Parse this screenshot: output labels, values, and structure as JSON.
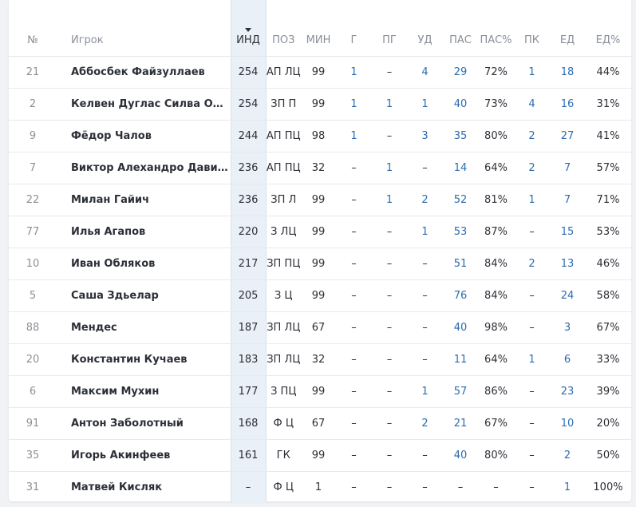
{
  "table": {
    "headers": {
      "num": "№",
      "player": "Игрок",
      "ind": "ИНД",
      "pos": "ПОЗ",
      "min": "МИН",
      "g": "Г",
      "pg": "ПГ",
      "ud": "УД",
      "pas": "ПАС",
      "pas_pct": "ПАС%",
      "pk": "ПК",
      "ed": "ЕД",
      "ed_pct": "ЕД%"
    },
    "sort_column": "ИНД",
    "rows": [
      {
        "num": "21",
        "name": "Аббосбек Файзуллаев",
        "ind": "254",
        "pos": "АП ЛЦ",
        "min": "99",
        "g": "1",
        "pg": "–",
        "ud": "4",
        "pas": "29",
        "pas_pct": "72%",
        "pk": "1",
        "ed": "18",
        "ed_pct": "44%"
      },
      {
        "num": "2",
        "name": "Келвен Дуглас Силва Оливе…",
        "ind": "254",
        "pos": "ЗП П",
        "min": "99",
        "g": "1",
        "pg": "1",
        "ud": "1",
        "pas": "40",
        "pas_pct": "73%",
        "pk": "4",
        "ed": "16",
        "ed_pct": "31%"
      },
      {
        "num": "9",
        "name": "Фёдор Чалов",
        "ind": "244",
        "pos": "АП ПЦ",
        "min": "98",
        "g": "1",
        "pg": "–",
        "ud": "3",
        "pas": "35",
        "pas_pct": "80%",
        "pk": "2",
        "ed": "27",
        "ed_pct": "41%"
      },
      {
        "num": "7",
        "name": "Виктор Алехандро Давила С…",
        "ind": "236",
        "pos": "АП ПЦ",
        "min": "32",
        "g": "–",
        "pg": "1",
        "ud": "–",
        "pas": "14",
        "pas_pct": "64%",
        "pk": "2",
        "ed": "7",
        "ed_pct": "57%"
      },
      {
        "num": "22",
        "name": "Милан Гайич",
        "ind": "236",
        "pos": "ЗП Л",
        "min": "99",
        "g": "–",
        "pg": "1",
        "ud": "2",
        "pas": "52",
        "pas_pct": "81%",
        "pk": "1",
        "ed": "7",
        "ed_pct": "71%"
      },
      {
        "num": "77",
        "name": "Илья Агапов",
        "ind": "220",
        "pos": "З ЛЦ",
        "min": "99",
        "g": "–",
        "pg": "–",
        "ud": "1",
        "pas": "53",
        "pas_pct": "87%",
        "pk": "–",
        "ed": "15",
        "ed_pct": "53%"
      },
      {
        "num": "10",
        "name": "Иван Обляков",
        "ind": "217",
        "pos": "ЗП ПЦ",
        "min": "99",
        "g": "–",
        "pg": "–",
        "ud": "–",
        "pas": "51",
        "pas_pct": "84%",
        "pk": "2",
        "ed": "13",
        "ed_pct": "46%"
      },
      {
        "num": "5",
        "name": "Саша Здьелар",
        "ind": "205",
        "pos": "З Ц",
        "min": "99",
        "g": "–",
        "pg": "–",
        "ud": "–",
        "pas": "76",
        "pas_pct": "84%",
        "pk": "–",
        "ed": "24",
        "ed_pct": "58%"
      },
      {
        "num": "88",
        "name": "Мендес",
        "ind": "187",
        "pos": "ЗП ЛЦ",
        "min": "67",
        "g": "–",
        "pg": "–",
        "ud": "–",
        "pas": "40",
        "pas_pct": "98%",
        "pk": "–",
        "ed": "3",
        "ed_pct": "67%"
      },
      {
        "num": "20",
        "name": "Константин Кучаев",
        "ind": "183",
        "pos": "ЗП ЛЦ",
        "min": "32",
        "g": "–",
        "pg": "–",
        "ud": "–",
        "pas": "11",
        "pas_pct": "64%",
        "pk": "1",
        "ed": "6",
        "ed_pct": "33%"
      },
      {
        "num": "6",
        "name": "Максим Мухин",
        "ind": "177",
        "pos": "З ПЦ",
        "min": "99",
        "g": "–",
        "pg": "–",
        "ud": "1",
        "pas": "57",
        "pas_pct": "86%",
        "pk": "–",
        "ed": "23",
        "ed_pct": "39%"
      },
      {
        "num": "91",
        "name": "Антон Заболотный",
        "ind": "168",
        "pos": "Ф Ц",
        "min": "67",
        "g": "–",
        "pg": "–",
        "ud": "2",
        "pas": "21",
        "pas_pct": "67%",
        "pk": "–",
        "ed": "10",
        "ed_pct": "20%"
      },
      {
        "num": "35",
        "name": "Игорь Акинфеев",
        "ind": "161",
        "pos": "ГК",
        "min": "99",
        "g": "–",
        "pg": "–",
        "ud": "–",
        "pas": "40",
        "pas_pct": "80%",
        "pk": "–",
        "ed": "2",
        "ed_pct": "50%"
      },
      {
        "num": "31",
        "name": "Матвей Кисляк",
        "ind": "–",
        "pos": "Ф Ц",
        "min": "1",
        "g": "–",
        "pg": "–",
        "ud": "–",
        "pas": "–",
        "pas_pct": "–",
        "pk": "–",
        "ed": "1",
        "ed_pct": "100%"
      }
    ]
  },
  "colors": {
    "link": "#2b6cb0",
    "text": "#2b2f36",
    "muted": "#8a9099",
    "sorted_column_bg": "#e9f0f7",
    "background": "#f0f2f5"
  }
}
